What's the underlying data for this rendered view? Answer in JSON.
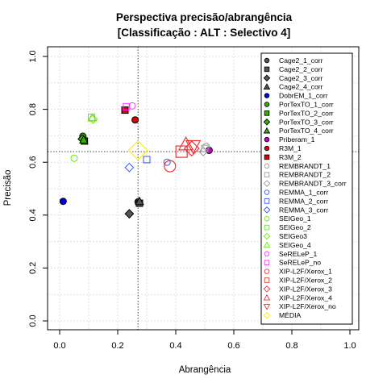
{
  "chart_data": {
    "type": "scatter",
    "title": "Perspectiva precisão/abrangência",
    "subtitle": "[Classificação : ALT : Selectivo 4]",
    "xlabel": "Abrangência",
    "ylabel": "Precisão",
    "xlim": [
      0,
      1
    ],
    "ylim": [
      0,
      1
    ],
    "xticks": [
      "0.0",
      "0.2",
      "0.4",
      "0.6",
      "0.8",
      "1.0"
    ],
    "yticks": [
      "0.0",
      "0.2",
      "0.4",
      "0.6",
      "0.8",
      "1.0"
    ],
    "grid": true,
    "legend_position": "right",
    "reference_lines": {
      "x": 0.27,
      "y": 0.64
    },
    "series": [
      {
        "name": "Cage2_1_corr",
        "shape": "circle",
        "filled": true,
        "color": "#555555",
        "points": [
          [
            0.27,
            0.45
          ]
        ]
      },
      {
        "name": "Cage2_2_corr",
        "shape": "square",
        "filled": true,
        "color": "#555555",
        "points": [
          [
            0.275,
            0.445
          ]
        ]
      },
      {
        "name": "Cage2_3_corr",
        "shape": "diamond",
        "filled": true,
        "color": "#555555",
        "points": [
          [
            0.24,
            0.405
          ]
        ]
      },
      {
        "name": "Cage2_4_corr",
        "shape": "triangle",
        "filled": true,
        "color": "#555555",
        "points": [
          [
            0.275,
            0.452
          ]
        ]
      },
      {
        "name": "DobrEM_1_corr",
        "shape": "circle",
        "filled": true,
        "color": "#0000ee",
        "points": [
          [
            0.012,
            0.452
          ]
        ]
      },
      {
        "name": "PorTexTO_1_corr",
        "shape": "circle",
        "filled": true,
        "color": "#3cb000",
        "points": [
          [
            0.08,
            0.698
          ]
        ]
      },
      {
        "name": "PorTexTO_2_corr",
        "shape": "square",
        "filled": true,
        "color": "#3cb000",
        "points": [
          [
            0.085,
            0.68
          ]
        ]
      },
      {
        "name": "PorTexTO_3_corr",
        "shape": "diamond",
        "filled": true,
        "color": "#3cb000",
        "points": [
          [
            0.078,
            0.688
          ]
        ]
      },
      {
        "name": "PorTexTO_4_corr",
        "shape": "triangle",
        "filled": true,
        "color": "#3cb000",
        "points": [
          [
            0.083,
            0.685
          ]
        ]
      },
      {
        "name": "Priberam_1",
        "shape": "circle",
        "filled": true,
        "color": "#cc00cc",
        "points": [
          [
            0.515,
            0.645
          ]
        ]
      },
      {
        "name": "R3M_1",
        "shape": "circle",
        "filled": true,
        "color": "#dd0000",
        "points": [
          [
            0.26,
            0.76
          ]
        ]
      },
      {
        "name": "R3M_2",
        "shape": "square",
        "filled": true,
        "color": "#dd0000",
        "points": [
          [
            0.225,
            0.797
          ]
        ]
      },
      {
        "name": "REMBRANDT_1",
        "shape": "circle",
        "filled": false,
        "color": "#999999",
        "points": [
          [
            0.505,
            0.66
          ]
        ]
      },
      {
        "name": "REMBRANDT_2",
        "shape": "square",
        "filled": false,
        "color": "#999999",
        "points": [
          [
            0.5,
            0.652
          ]
        ]
      },
      {
        "name": "REMBRANDT_3_corr",
        "shape": "diamond",
        "filled": false,
        "color": "#999999",
        "points": [
          [
            0.495,
            0.64
          ]
        ]
      },
      {
        "name": "REMMA_1_corr",
        "shape": "circle",
        "filled": false,
        "color": "#3355ff",
        "points": [
          [
            0.37,
            0.6
          ]
        ]
      },
      {
        "name": "REMMA_2_corr",
        "shape": "square",
        "filled": false,
        "color": "#3355ff",
        "points": [
          [
            0.3,
            0.61
          ]
        ]
      },
      {
        "name": "REMMA_3_corr",
        "shape": "diamond",
        "filled": false,
        "color": "#3355ff",
        "points": [
          [
            0.24,
            0.58
          ]
        ]
      },
      {
        "name": "SEIGeo_1",
        "shape": "circle",
        "filled": false,
        "color": "#66ee00",
        "points": [
          [
            0.05,
            0.615
          ]
        ]
      },
      {
        "name": "SEIGeo_2",
        "shape": "square",
        "filled": false,
        "color": "#66ee00",
        "points": [
          [
            0.11,
            0.77
          ]
        ]
      },
      {
        "name": "SEIGeo3",
        "shape": "diamond",
        "filled": false,
        "color": "#66ee00",
        "points": [
          [
            0.115,
            0.763
          ]
        ]
      },
      {
        "name": "SEIGeo_4",
        "shape": "triangle",
        "filled": false,
        "color": "#66ee00",
        "points": [
          [
            0.112,
            0.768
          ]
        ]
      },
      {
        "name": "SeRELeP_1",
        "shape": "circle",
        "filled": false,
        "color": "#ff33ff",
        "points": [
          [
            0.25,
            0.813
          ]
        ]
      },
      {
        "name": "SeRELeP_no",
        "shape": "square",
        "filled": false,
        "color": "#ff33ff",
        "points": [
          [
            0.23,
            0.81
          ]
        ]
      },
      {
        "name": "XIP-L2F/Xerox_1",
        "shape": "circle",
        "filled": false,
        "color": "#ee3333",
        "points": [
          [
            0.38,
            0.585
          ]
        ]
      },
      {
        "name": "XIP-L2F/Xerox_2",
        "shape": "square",
        "filled": false,
        "color": "#ee3333",
        "points": [
          [
            0.42,
            0.64
          ]
        ]
      },
      {
        "name": "XIP-L2F/Xerox_3",
        "shape": "diamond",
        "filled": false,
        "color": "#ee3333",
        "points": [
          [
            0.455,
            0.652
          ]
        ]
      },
      {
        "name": "XIP-L2F/Xerox_4",
        "shape": "triangle",
        "filled": false,
        "color": "#ee3333",
        "points": [
          [
            0.435,
            0.668
          ]
        ]
      },
      {
        "name": "XIP-L2F/Xerox_no",
        "shape": "triangle-down",
        "filled": false,
        "color": "#ee3333",
        "points": [
          [
            0.46,
            0.66
          ]
        ]
      },
      {
        "name": "MÉDIA",
        "shape": "diamond",
        "filled": false,
        "color": "#ffee00",
        "points": [
          [
            0.27,
            0.645
          ]
        ]
      }
    ]
  }
}
